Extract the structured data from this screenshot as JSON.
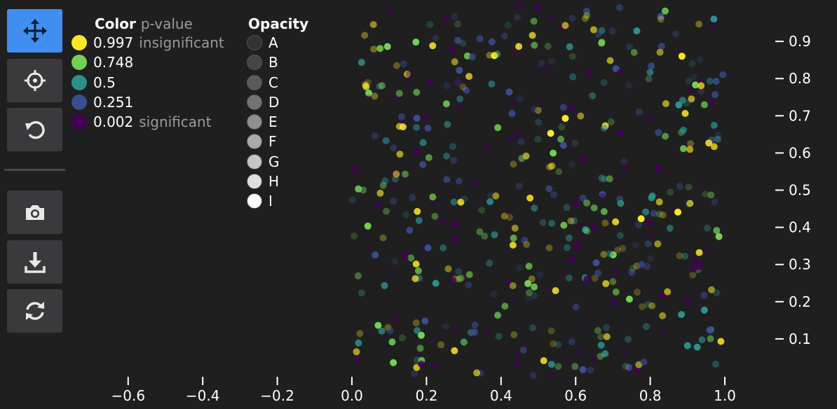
{
  "toolbar": {
    "buttons": [
      {
        "name": "pan-button",
        "icon": "move-arrows-icon",
        "active": true
      },
      {
        "name": "crosshair-button",
        "icon": "crosshair-icon",
        "active": false
      },
      {
        "name": "reset-button",
        "icon": "reset-arrow-icon",
        "active": false
      },
      {
        "name": "screenshot-button",
        "icon": "camera-icon",
        "active": false
      },
      {
        "name": "download-button",
        "icon": "download-icon",
        "active": false
      },
      {
        "name": "refresh-button",
        "icon": "refresh-icon",
        "active": false
      }
    ]
  },
  "legend": {
    "color": {
      "title": "Color",
      "subtitle": "p-value",
      "items": [
        {
          "value": "0.997",
          "note": "insignificant",
          "color": "#fde725"
        },
        {
          "value": "0.748",
          "note": "",
          "color": "#73d055"
        },
        {
          "value": "0.5",
          "note": "",
          "color": "#2d8f8b"
        },
        {
          "value": "0.251",
          "note": "",
          "color": "#3b4c8f"
        },
        {
          "value": "0.002",
          "note": "significant",
          "color": "#440154"
        }
      ]
    },
    "opacity": {
      "title": "Opacity",
      "items": [
        {
          "label": "A",
          "color": "#333333"
        },
        {
          "label": "B",
          "color": "#454545"
        },
        {
          "label": "C",
          "color": "#5a5a5a"
        },
        {
          "label": "D",
          "color": "#737373"
        },
        {
          "label": "E",
          "color": "#8f8f8f"
        },
        {
          "label": "F",
          "color": "#aaaaaa"
        },
        {
          "label": "G",
          "color": "#c6c6c6"
        },
        {
          "label": "H",
          "color": "#e0e0e0"
        },
        {
          "label": "I",
          "color": "#ffffff"
        }
      ]
    }
  },
  "chart_data": {
    "type": "scatter",
    "xlim": [
      -0.65,
      1.03
    ],
    "ylim": [
      0.0,
      1.0
    ],
    "x_ticks": [
      "−0.6",
      "−0.4",
      "−0.2",
      "0.0",
      "0.2",
      "0.4",
      "0.6",
      "0.8",
      "1.0"
    ],
    "x_tick_values": [
      -0.6,
      -0.4,
      -0.2,
      0.0,
      0.2,
      0.4,
      0.6,
      0.8,
      1.0
    ],
    "y_ticks": [
      "0.1",
      "0.2",
      "0.3",
      "0.4",
      "0.5",
      "0.6",
      "0.7",
      "0.8",
      "0.9"
    ],
    "y_tick_values": [
      0.1,
      0.2,
      0.3,
      0.4,
      0.5,
      0.6,
      0.7,
      0.8,
      0.9
    ],
    "y_axis_side": "right",
    "grid": false,
    "point_count": 500,
    "x_range_of_points": [
      0.0,
      1.0
    ],
    "y_range_of_points": [
      0.0,
      1.0
    ],
    "color_field": "p-value",
    "opacity_field": "category"
  }
}
